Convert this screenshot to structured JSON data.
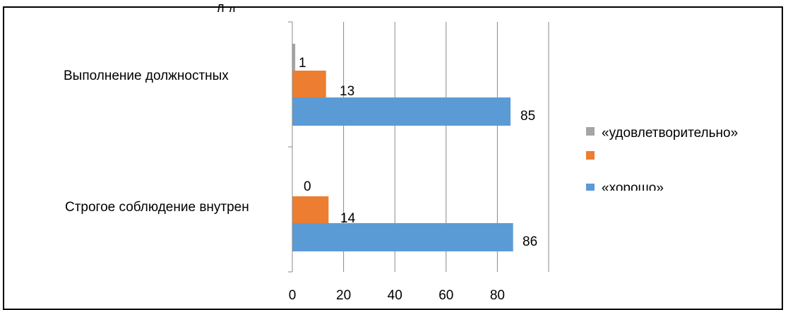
{
  "chart_data": {
    "type": "bar",
    "orientation": "horizontal",
    "title_fragment": "Д        д",
    "categories": [
      "Выполнение должностных",
      "Строгое соблюдение внутренней"
    ],
    "series": [
      {
        "name": "«удовлетворительно»",
        "color": "#a5a5a5",
        "values": [
          1,
          0
        ],
        "labels": [
          "1",
          "0"
        ]
      },
      {
        "name": "«хорошо»",
        "color": "#ed7d31",
        "values": [
          13,
          14
        ],
        "labels": [
          "13",
          "14"
        ]
      },
      {
        "name": "«хорошо»",
        "color": "#5b9bd5",
        "values": [
          85,
          86
        ],
        "labels": [
          "85",
          "86"
        ]
      }
    ],
    "legend": {
      "position": "right",
      "entries": [
        {
          "label": "«удовлетворительно»",
          "color": "#a5a5a5"
        },
        {
          "label": "",
          "color": "#ed7d31"
        },
        {
          "label": "«хорошо»",
          "color": "#5b9bd5"
        }
      ]
    },
    "xlim": [
      0,
      100
    ],
    "xticks": [
      "0",
      "20",
      "40",
      "60",
      "80"
    ],
    "grid": true,
    "gridline_color": "#888888"
  }
}
